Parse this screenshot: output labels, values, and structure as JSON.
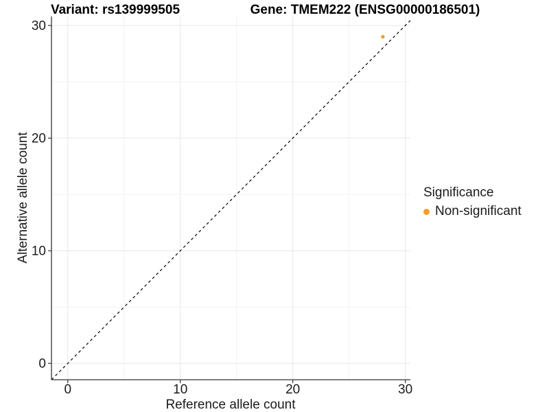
{
  "header": {
    "title_left": "Variant: rs139999505",
    "title_right": "Gene: TMEM222 (ENSG00000186501)"
  },
  "chart_data": {
    "type": "scatter",
    "title_left": "Variant: rs139999505",
    "title_right": "Gene: TMEM222 (ENSG00000186501)",
    "xlabel": "Reference allele count",
    "ylabel": "Alternative allele count",
    "xlim": [
      -1.45,
      30.45
    ],
    "ylim": [
      -1.45,
      30.8
    ],
    "xticks": [
      0,
      10,
      20,
      30
    ],
    "yticks": [
      0,
      10,
      20,
      30
    ],
    "minor_gridlines": [
      5,
      15,
      25
    ],
    "grid": "major+minor",
    "identity_line": {
      "slope": 1,
      "intercept": 0,
      "style": "dashed",
      "color": "#000000"
    },
    "series": [
      {
        "name": "Non-significant",
        "color": "#F89C2B",
        "points": [
          {
            "x": 28,
            "y": 29
          }
        ]
      }
    ],
    "legend": {
      "title": "Significance",
      "position": "right",
      "entries": [
        {
          "label": "Non-significant",
          "color": "#F89C2B"
        }
      ]
    },
    "colors": {
      "grid_major": "#E6E6E6",
      "grid_minor": "#F2F2F2",
      "axis_line": "#333333",
      "tick_text": "#1a1a1a",
      "background": "#ffffff"
    }
  }
}
